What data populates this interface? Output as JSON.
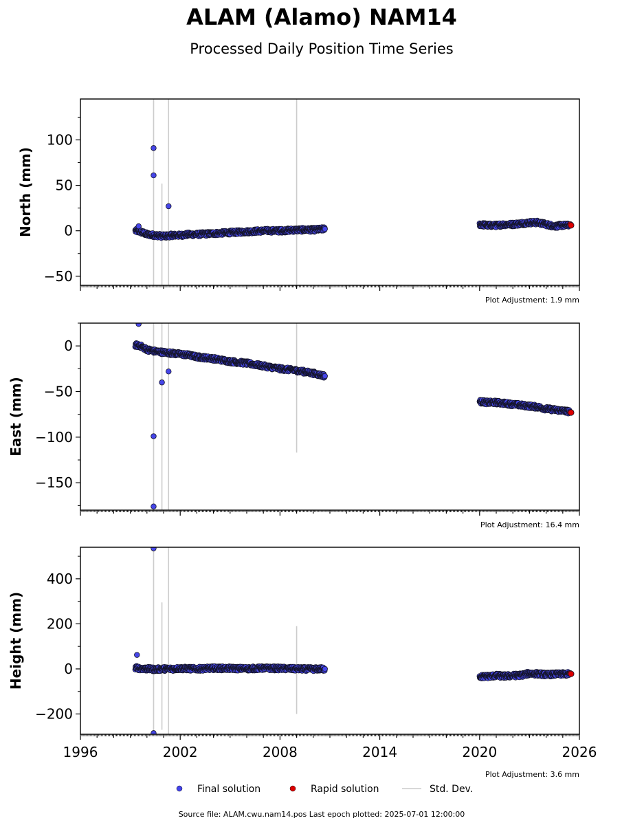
{
  "title": "ALAM (Alamo) NAM14",
  "subtitle": "Processed Daily Position Time Series",
  "footer": "Source file: ALAM.cwu.nam14.pos  Last epoch plotted: 2025-07-01 12:00:00",
  "legend": [
    {
      "label": "Final solution",
      "color": "#4444ee"
    },
    {
      "label": "Rapid solution",
      "color": "#dd0000"
    },
    {
      "label": "Std. Dev.",
      "color": "#cccccc"
    }
  ],
  "chart_data": {
    "type": "scatter",
    "x_axis": {
      "xlim": [
        1996,
        2026
      ],
      "ticks": [
        1996,
        2002,
        2008,
        2014,
        2020,
        2026
      ],
      "tick_labels": [
        "1996",
        "2002",
        "2008",
        "2014",
        "2020",
        "2026"
      ]
    },
    "panels": [
      {
        "ylabel": "North (mm)",
        "ylim": [
          -60,
          145
        ],
        "ticks": [
          -50,
          0,
          50,
          100
        ],
        "tick_labels": [
          "−50",
          "0",
          "50",
          "100"
        ],
        "adjustment": "Plot Adjustment: 1.9 mm",
        "final_segments": [
          {
            "x": [
              1999.3,
              1999.6,
              2000.0,
              2000.5,
              2001.0,
              2001.5,
              2002.0,
              2002.5,
              2003.0,
              2004.0,
              2005.0,
              2006.0,
              2007.0,
              2008.0,
              2009.0,
              2010.0,
              2010.7
            ],
            "y": [
              0,
              -1,
              -4,
              -5,
              -6,
              -5,
              -5,
              -4,
              -4,
              -3,
              -2,
              -1,
              0,
              0,
              1,
              1,
              2
            ]
          },
          {
            "x": [
              2020.0,
              2020.5,
              2021.0,
              2021.5,
              2022.0,
              2022.5,
              2023.0,
              2023.5,
              2024.0,
              2024.5,
              2025.0,
              2025.4
            ],
            "y": [
              7,
              6,
              6,
              7,
              7,
              8,
              9,
              9,
              7,
              5,
              6,
              6
            ]
          }
        ],
        "outliers": [
          {
            "x": 2000.4,
            "y": 91
          },
          {
            "x": 2000.4,
            "y": 61
          },
          {
            "x": 2001.3,
            "y": 27
          },
          {
            "x": 1999.5,
            "y": 5
          }
        ],
        "rapid": {
          "x": [
            2025.45,
            2025.5
          ],
          "y": [
            7,
            6
          ]
        },
        "stddev": [
          {
            "x": 2000.4,
            "y0": -60,
            "y1": 145
          },
          {
            "x": 2000.9,
            "y0": -60,
            "y1": 52
          },
          {
            "x": 2001.3,
            "y0": -60,
            "y1": 145
          },
          {
            "x": 2009.0,
            "y0": -60,
            "y1": 145
          }
        ]
      },
      {
        "ylabel": "East (mm)",
        "ylim": [
          -180,
          25
        ],
        "ticks": [
          -150,
          -100,
          -50,
          0
        ],
        "tick_labels": [
          "−150",
          "−100",
          "−50",
          "0"
        ],
        "adjustment": "Plot Adjustment: 16.4 mm",
        "final_segments": [
          {
            "x": [
              1999.3,
              1999.6,
              2000.0,
              2000.5,
              2001.0,
              2001.5,
              2002.0,
              2002.5,
              2003.0,
              2004.0,
              2005.0,
              2006.0,
              2007.0,
              2008.0,
              2009.0,
              2010.0,
              2010.7
            ],
            "y": [
              1,
              0,
              -4,
              -6,
              -7,
              -8,
              -9,
              -10,
              -12,
              -14,
              -17,
              -19,
              -22,
              -25,
              -27,
              -30,
              -33
            ]
          },
          {
            "x": [
              2020.0,
              2020.5,
              2021.0,
              2021.5,
              2022.0,
              2022.5,
              2023.0,
              2023.5,
              2024.0,
              2024.5,
              2025.0,
              2025.4
            ],
            "y": [
              -61,
              -62,
              -62,
              -63,
              -64,
              -65,
              -66,
              -67,
              -69,
              -70,
              -71,
              -72
            ]
          }
        ],
        "outliers": [
          {
            "x": 1999.5,
            "y": 24
          },
          {
            "x": 2000.4,
            "y": -99
          },
          {
            "x": 2000.4,
            "y": -176
          },
          {
            "x": 2000.9,
            "y": -40
          },
          {
            "x": 2001.3,
            "y": -28
          }
        ],
        "rapid": {
          "x": [
            2025.45,
            2025.5
          ],
          "y": [
            -73,
            -73
          ]
        },
        "stddev": [
          {
            "x": 2000.4,
            "y0": -180,
            "y1": 25
          },
          {
            "x": 2000.9,
            "y0": -180,
            "y1": 25
          },
          {
            "x": 2001.3,
            "y0": -180,
            "y1": 25
          },
          {
            "x": 2009.0,
            "y0": -117,
            "y1": 25
          }
        ]
      },
      {
        "ylabel": "Height (mm)",
        "ylim": [
          -290,
          540
        ],
        "ticks": [
          -200,
          0,
          200,
          400
        ],
        "tick_labels": [
          "−200",
          "0",
          "200",
          "400"
        ],
        "adjustment": "Plot Adjustment: 3.6 mm",
        "final_segments": [
          {
            "x": [
              1999.3,
              1999.6,
              2000.0,
              2000.5,
              2001.0,
              2001.5,
              2002.0,
              2002.5,
              2003.0,
              2004.0,
              2005.0,
              2006.0,
              2007.0,
              2008.0,
              2009.0,
              2010.0,
              2010.7
            ],
            "y": [
              5,
              2,
              0,
              -2,
              0,
              0,
              2,
              1,
              0,
              3,
              2,
              1,
              3,
              2,
              0,
              -1,
              0
            ]
          },
          {
            "x": [
              2020.0,
              2020.5,
              2021.0,
              2021.5,
              2022.0,
              2022.5,
              2023.0,
              2023.5,
              2024.0,
              2024.5,
              2025.0,
              2025.4
            ],
            "y": [
              -35,
              -33,
              -30,
              -32,
              -30,
              -28,
              -20,
              -22,
              -25,
              -24,
              -23,
              -22
            ]
          }
        ],
        "outliers": [
          {
            "x": 2000.4,
            "y": 535
          },
          {
            "x": 2000.4,
            "y": -285
          },
          {
            "x": 1999.4,
            "y": 62
          }
        ],
        "rapid": {
          "x": [
            2025.45,
            2025.5
          ],
          "y": [
            -20,
            -22
          ]
        },
        "stddev": [
          {
            "x": 2000.4,
            "y0": -290,
            "y1": 540
          },
          {
            "x": 2000.9,
            "y0": -270,
            "y1": 295
          },
          {
            "x": 2001.3,
            "y0": -290,
            "y1": 540
          },
          {
            "x": 2009.0,
            "y0": -200,
            "y1": 190
          }
        ]
      }
    ]
  }
}
